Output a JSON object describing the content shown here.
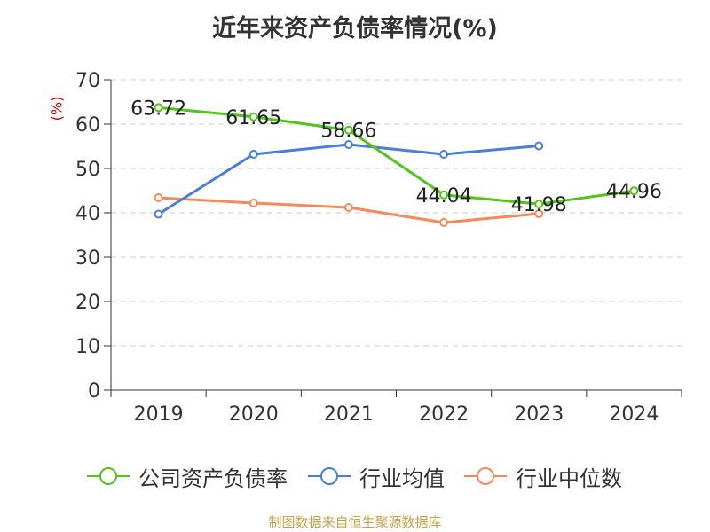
{
  "title": "近年来资产负债率情况(%)",
  "unit_label": "(%)",
  "source": "制图数据来自恒生聚源数据库",
  "chart_data": {
    "type": "line",
    "title": "近年来资产负债率情况(%)",
    "ylabel": "(%)",
    "xlabel": "",
    "categories": [
      "2019",
      "2020",
      "2021",
      "2022",
      "2023",
      "2024"
    ],
    "ylim": [
      0,
      70
    ],
    "yticks": [
      0,
      10,
      20,
      30,
      40,
      50,
      60,
      70
    ],
    "grid": true,
    "legend_position": "bottom",
    "series": [
      {
        "name": "公司资产负债率",
        "color": "#52c41a",
        "values": [
          63.72,
          61.65,
          58.66,
          44.04,
          41.98,
          44.96
        ],
        "labels": [
          "63.72",
          "61.65",
          "58.66",
          "44.04",
          "41.98",
          "44.96"
        ]
      },
      {
        "name": "行业均值",
        "color": "#4a7fd6",
        "values": [
          39.7,
          53.2,
          55.4,
          53.2,
          55.1,
          null
        ]
      },
      {
        "name": "行业中位数",
        "color": "#f5895a",
        "values": [
          43.4,
          42.2,
          41.2,
          37.8,
          39.8,
          null
        ]
      }
    ]
  }
}
